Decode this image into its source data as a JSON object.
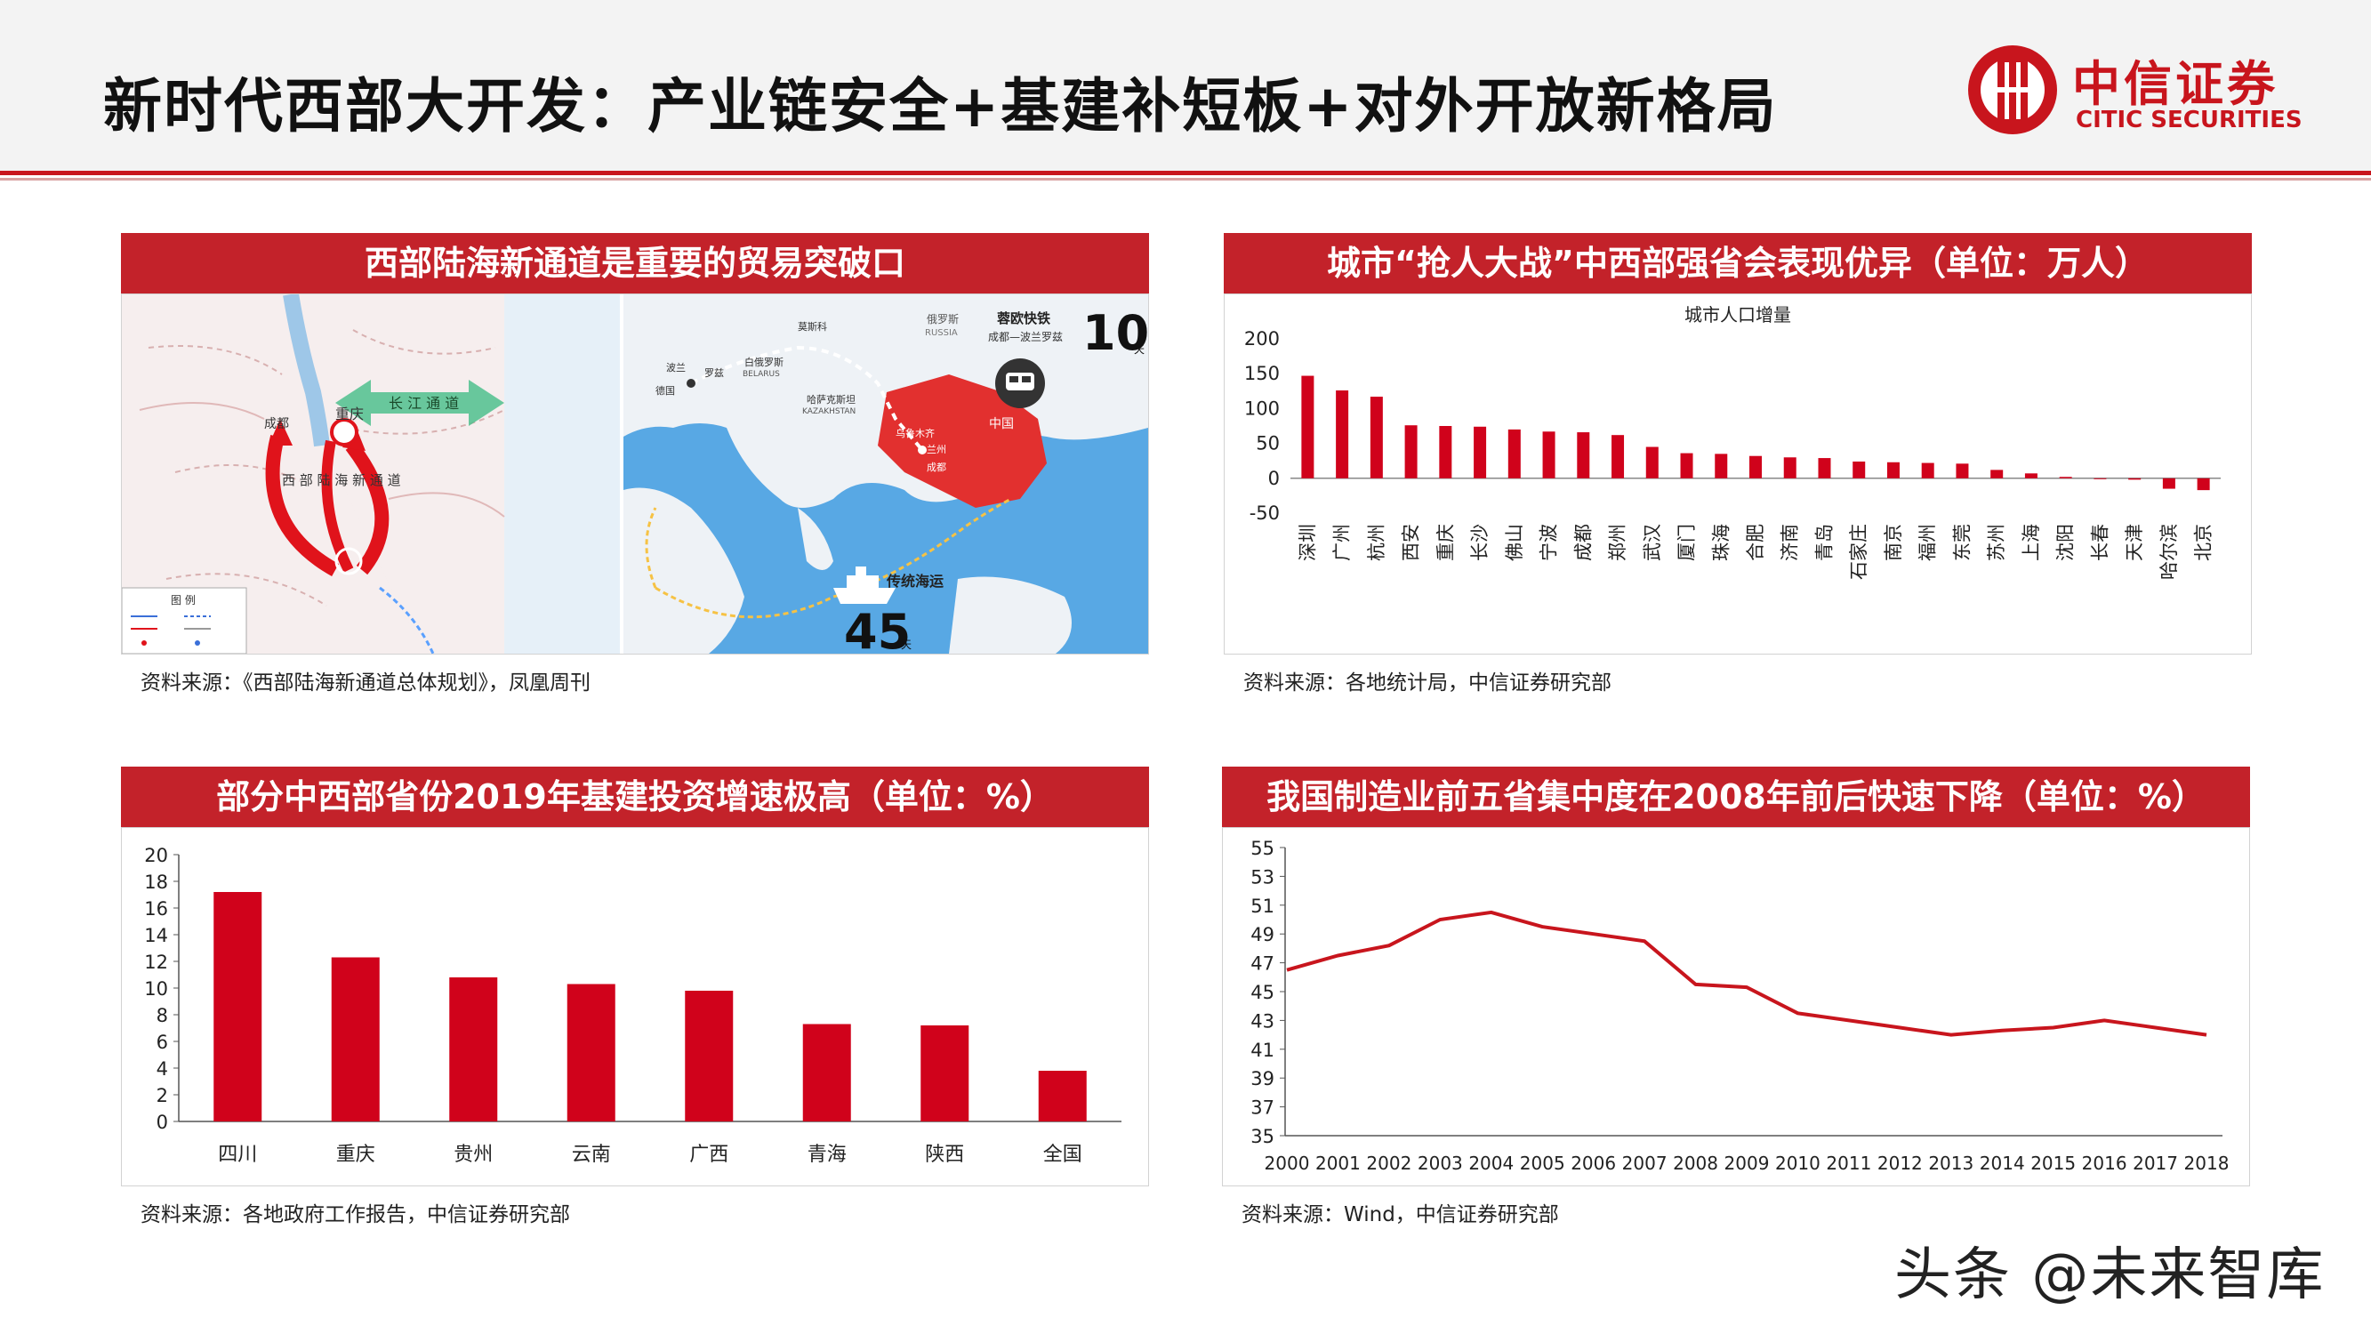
{
  "page_title": "新时代西部大开发：产业链安全+基建补短板+对外开放新格局",
  "logo": {
    "cn": "中信证券",
    "en": "CITIC SECURITIES"
  },
  "colors": {
    "brand_red": "#c8151d",
    "bar_red": "#d0021b",
    "header_red": "#c3222a"
  },
  "panels": {
    "map": {
      "title": "西部陆海新通道是重要的贸易突破口",
      "source": "资料来源：《西部陆海新通道总体规划》，凤凰周刊",
      "labels": {
        "left_corridor": "西 部 陆 海 新 通 道",
        "yangtze": "长 江 通 道",
        "chongqing": "重庆",
        "chengdu": "成都",
        "legend_title": "图 例",
        "train_title": "蓉欧快铁",
        "train_subtitle": "成都—波兰罗兹",
        "train_days": "10",
        "ship_title": "传统海运",
        "ship_days": "45",
        "days_unit": "天",
        "russia": "俄罗斯",
        "russia_en": "RUSSIA",
        "poland": "波兰",
        "kazakhstan": "哈萨克斯坦",
        "kazakhstan_en": "KAZAKHSTAN",
        "belarus": "白俄罗斯",
        "belarus_en": "BELARUS",
        "germany": "德国",
        "moscow": "莫斯科",
        "lodz": "罗兹",
        "urumqi": "乌鲁木齐",
        "lanzhou": "兰州",
        "chengdu_map": "成都",
        "china": "中国"
      }
    },
    "city": {
      "title": "城市“抢人大战”中西部强省会表现优异（单位：万人）",
      "source": "资料来源：各地统计局，中信证券研究部"
    },
    "infra": {
      "title": "部分中西部省份2019年基建投资增速极高（单位：%）",
      "source": "资料来源：各地政府工作报告，中信证券研究部"
    },
    "mfg": {
      "title": "我国制造业前五省集中度在2008年前后快速下降（单位：%）",
      "source": "资料来源：Wind，中信证券研究部"
    }
  },
  "watermark": "头条 @未来智库",
  "chart_data": [
    {
      "id": "city",
      "type": "bar",
      "title": "城市人口增量",
      "categories": [
        "深圳",
        "广州",
        "杭州",
        "西安",
        "重庆",
        "长沙",
        "佛山",
        "宁波",
        "成都",
        "郑州",
        "武汉",
        "厦门",
        "珠海",
        "合肥",
        "济南",
        "青岛",
        "石家庄",
        "南京",
        "福州",
        "东莞",
        "苏州",
        "上海",
        "沈阳",
        "长春",
        "天津",
        "哈尔滨",
        "北京"
      ],
      "values": [
        147,
        126,
        117,
        76,
        75,
        74,
        70,
        67,
        66,
        62,
        45,
        36,
        35,
        32,
        30,
        29,
        24,
        23,
        22,
        21,
        12,
        7,
        2,
        -1,
        -2,
        -15,
        -17
      ],
      "ylim": [
        -50,
        200
      ],
      "yticks": [
        -50,
        0,
        50,
        100,
        150,
        200
      ],
      "xlabel": "",
      "ylabel": ""
    },
    {
      "id": "infra",
      "type": "bar",
      "title": "",
      "categories": [
        "四川",
        "重庆",
        "贵州",
        "云南",
        "广西",
        "青海",
        "陕西",
        "全国"
      ],
      "values": [
        17.2,
        12.3,
        10.8,
        10.3,
        9.8,
        7.3,
        7.2,
        3.8
      ],
      "ylim": [
        0,
        20
      ],
      "yticks": [
        0,
        2,
        4,
        6,
        8,
        10,
        12,
        14,
        16,
        18,
        20
      ],
      "xlabel": "",
      "ylabel": ""
    },
    {
      "id": "mfg",
      "type": "line",
      "title": "",
      "x": [
        "2000",
        "2001",
        "2002",
        "2003",
        "2004",
        "2005",
        "2006",
        "2007",
        "2008",
        "2009",
        "2010",
        "2011",
        "2012",
        "2013",
        "2014",
        "2015",
        "2016",
        "2017",
        "2018"
      ],
      "values": [
        46.5,
        47.5,
        48.2,
        50.0,
        50.5,
        49.5,
        49.0,
        48.5,
        45.5,
        45.3,
        43.5,
        43.0,
        42.5,
        42.0,
        42.3,
        42.5,
        43.0,
        42.5,
        42.0
      ],
      "ylim": [
        35,
        55
      ],
      "yticks": [
        35,
        37,
        39,
        41,
        43,
        45,
        47,
        49,
        51,
        53,
        55
      ],
      "xlabel": "",
      "ylabel": ""
    }
  ]
}
